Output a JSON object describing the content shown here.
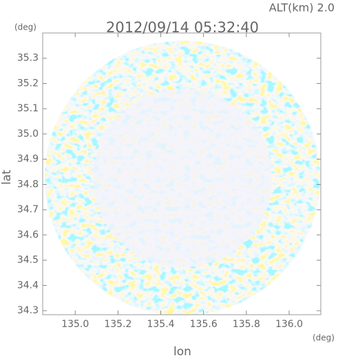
{
  "chart_data": {
    "type": "radar",
    "title": "2012/09/14 05:32:40",
    "subtitle": "ALT(km) 2.0",
    "x_label": "lon",
    "y_label": "lat",
    "x_unit": "(deg)",
    "y_unit": "(deg)",
    "xlim": [
      134.848,
      136.148
    ],
    "ylim": [
      34.284,
      35.4
    ],
    "xticks": [
      {
        "value": 135.0,
        "label": "135.0"
      },
      135.2,
      135.4,
      135.6,
      135.8,
      {
        "value": 136.0,
        "label": "136.0"
      }
    ],
    "yticks": [
      34.3,
      34.4,
      34.5,
      34.6,
      34.7,
      34.8,
      34.9,
      {
        "value": 35.0,
        "label": "35.0"
      },
      35.1,
      35.2,
      35.3
    ]
  }
}
